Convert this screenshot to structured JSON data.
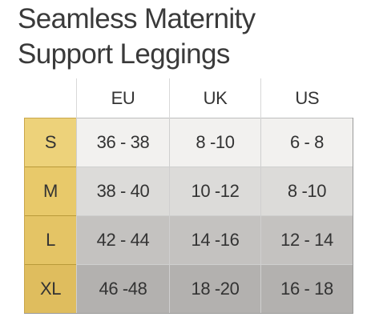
{
  "title": {
    "line1": "Seamless Maternity",
    "line2": "Support Leggings"
  },
  "table": {
    "columns": [
      "EU",
      "UK",
      "US"
    ],
    "rows": [
      {
        "size": "S",
        "eu": "36 - 38",
        "uk": "8 -10",
        "us": "6 - 8"
      },
      {
        "size": "M",
        "eu": "38 - 40",
        "uk": "10 -12",
        "us": "8 -10"
      },
      {
        "size": "L",
        "eu": "42 - 44",
        "uk": "14 -16",
        "us": "12 - 14"
      },
      {
        "size": "XL",
        "eu": "46 -48",
        "uk": "18 -20",
        "us": "16 - 18"
      }
    ]
  },
  "colors": {
    "size_column": "#e9c96d",
    "text": "#333333",
    "row_shades": [
      "#f2f1ef",
      "#dcdbd9",
      "#c4c2c0",
      "#b3b1af"
    ]
  }
}
